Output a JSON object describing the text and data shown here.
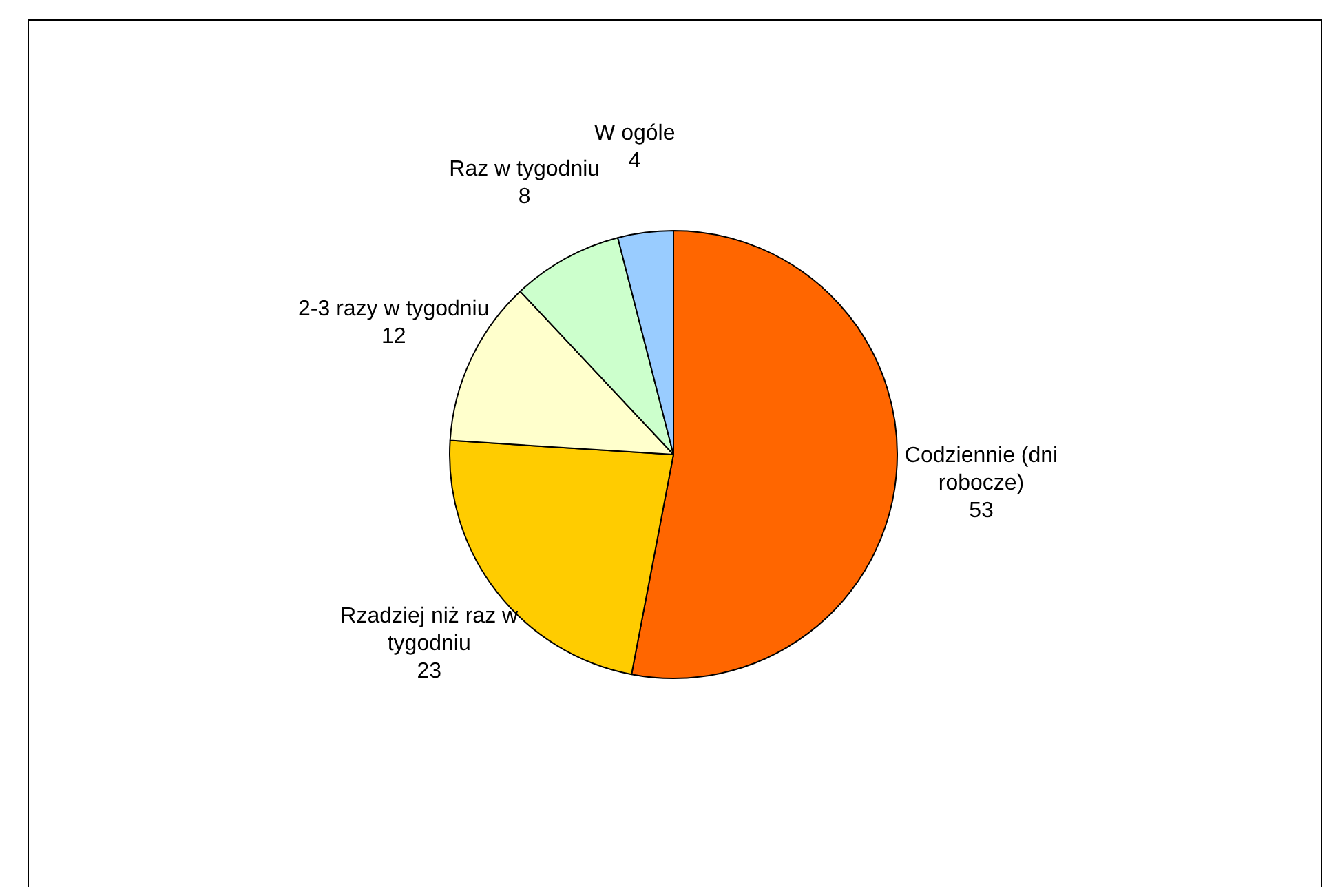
{
  "chart_data": {
    "type": "pie",
    "categories": [
      "Codziennie (dni robocze)",
      "Rzadziej niż raz w tygodniu",
      "2-3 razy w tygodniu",
      "Raz w tygodniu",
      "W ogóle"
    ],
    "values": [
      53,
      23,
      12,
      8,
      4
    ],
    "colors": [
      "#ff6600",
      "#ffcc00",
      "#ffffcc",
      "#ccffcc",
      "#99ccff"
    ],
    "data_labels": true,
    "legend": false
  }
}
